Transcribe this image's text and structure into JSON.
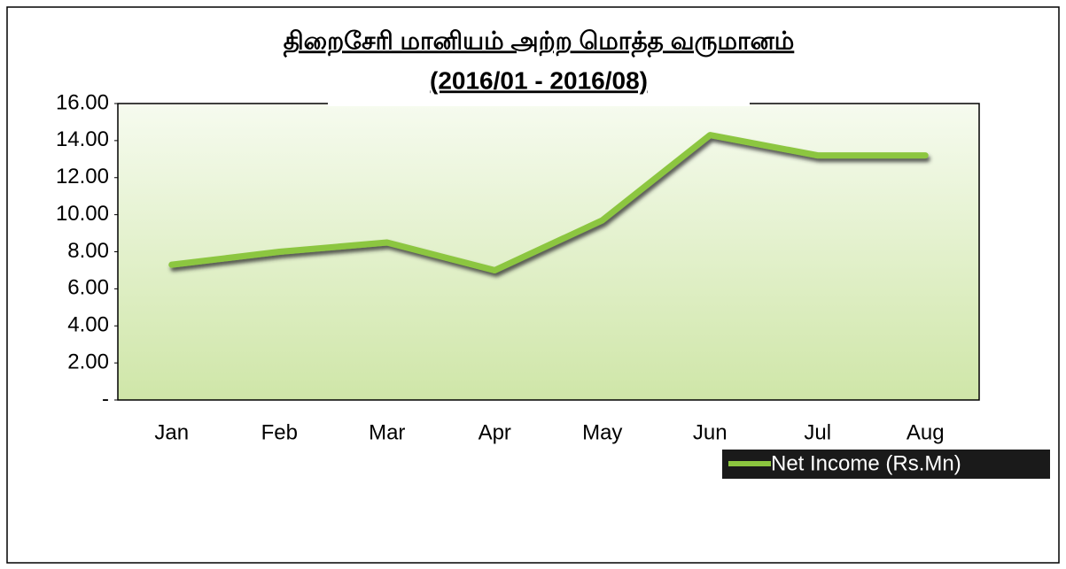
{
  "chart_data": {
    "type": "line",
    "title": "திறைசேரி மானியம் அற்ற மொத்த வருமானம்",
    "subtitle": "(2016/01 - 2016/08)",
    "categories": [
      "Jan",
      "Feb",
      "Mar",
      "Apr",
      "May",
      "Jun",
      "Jul",
      "Aug"
    ],
    "series": [
      {
        "name": "Net Income (Rs.Mn)",
        "color": "#8cc63f",
        "values": [
          7.3,
          8.0,
          8.5,
          7.0,
          9.7,
          14.3,
          13.2,
          13.2
        ]
      }
    ],
    "ylim": [
      0,
      16
    ],
    "yticks": [
      {
        "value": 0,
        "label": "-"
      },
      {
        "value": 2,
        "label": "2.00"
      },
      {
        "value": 4,
        "label": "4.00"
      },
      {
        "value": 6,
        "label": "6.00"
      },
      {
        "value": 8,
        "label": "8.00"
      },
      {
        "value": 10,
        "label": "10.00"
      },
      {
        "value": 12,
        "label": "12.00"
      },
      {
        "value": 14,
        "label": "14.00"
      },
      {
        "value": 16,
        "label": "16.00"
      }
    ],
    "legend": "bottom-right"
  }
}
